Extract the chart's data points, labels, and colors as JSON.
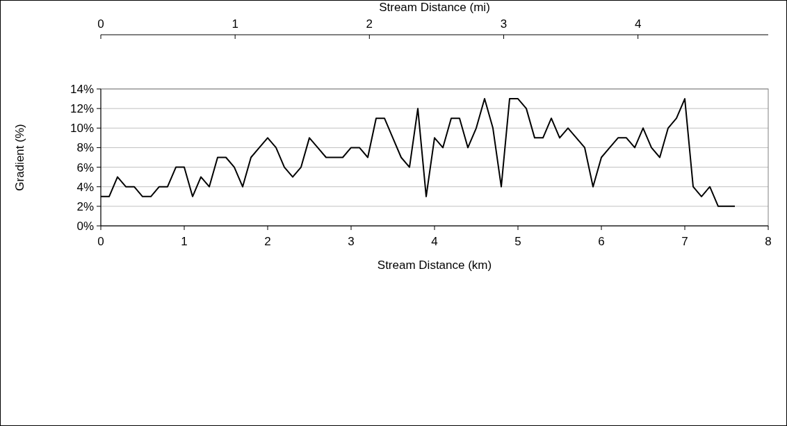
{
  "chart_data": {
    "type": "line",
    "xlabel": "Stream Distance (km)",
    "ylabel": "Gradient (%)",
    "x2label": "Stream Distance (mi)",
    "x": [
      0,
      0.1,
      0.2,
      0.3,
      0.4,
      0.5,
      0.6,
      0.7,
      0.8,
      0.9,
      1.0,
      1.1,
      1.2,
      1.3,
      1.4,
      1.5,
      1.6,
      1.7,
      1.8,
      1.9,
      2.0,
      2.1,
      2.2,
      2.3,
      2.4,
      2.5,
      2.6,
      2.7,
      2.8,
      2.9,
      3.0,
      3.1,
      3.2,
      3.3,
      3.4,
      3.5,
      3.6,
      3.7,
      3.8,
      3.9,
      4.0,
      4.1,
      4.2,
      4.3,
      4.4,
      4.5,
      4.6,
      4.7,
      4.8,
      4.9,
      5.0,
      5.1,
      5.2,
      5.3,
      5.4,
      5.5,
      5.6,
      5.7,
      5.8,
      5.9,
      6.0,
      6.1,
      6.2,
      6.3,
      6.4,
      6.5,
      6.6,
      6.7,
      6.8,
      6.9,
      7.0,
      7.1,
      7.2,
      7.3,
      7.4,
      7.5,
      7.6
    ],
    "series": [
      {
        "color": "#000000",
        "values": [
          3,
          3,
          5,
          4,
          4,
          3,
          3,
          4,
          4,
          6,
          6,
          3,
          5,
          4,
          7,
          7,
          6,
          4,
          7,
          8,
          9,
          8,
          6,
          5,
          6,
          9,
          8,
          7,
          7,
          7,
          8,
          8,
          7,
          11,
          11,
          9,
          7,
          6,
          12,
          3,
          9,
          8,
          11,
          11,
          8,
          10,
          13,
          10,
          4,
          13,
          13,
          12,
          9,
          9,
          11,
          9,
          10,
          9,
          8,
          4,
          7,
          8,
          9,
          9,
          8,
          10,
          8,
          7,
          10,
          11,
          13,
          4,
          3,
          4,
          2,
          2,
          2
        ]
      }
    ],
    "xlim": [
      0,
      8
    ],
    "xticks": [
      0,
      1,
      2,
      3,
      4,
      5,
      6,
      7,
      8
    ],
    "x2lim": [
      0,
      4.97
    ],
    "x2ticks": [
      0,
      1,
      2,
      3,
      4
    ],
    "ylim": [
      0,
      14
    ],
    "yticks": [
      {
        "value": 0,
        "label": "0%"
      },
      {
        "value": 2,
        "label": "2%"
      },
      {
        "value": 4,
        "label": "4%"
      },
      {
        "value": 6,
        "label": "6%"
      },
      {
        "value": 8,
        "label": "8%"
      },
      {
        "value": 10,
        "label": "10%"
      },
      {
        "value": 12,
        "label": "12%"
      },
      {
        "value": 14,
        "label": "14%"
      }
    ],
    "grid": "y",
    "marker": "none",
    "line_style": "solid"
  }
}
